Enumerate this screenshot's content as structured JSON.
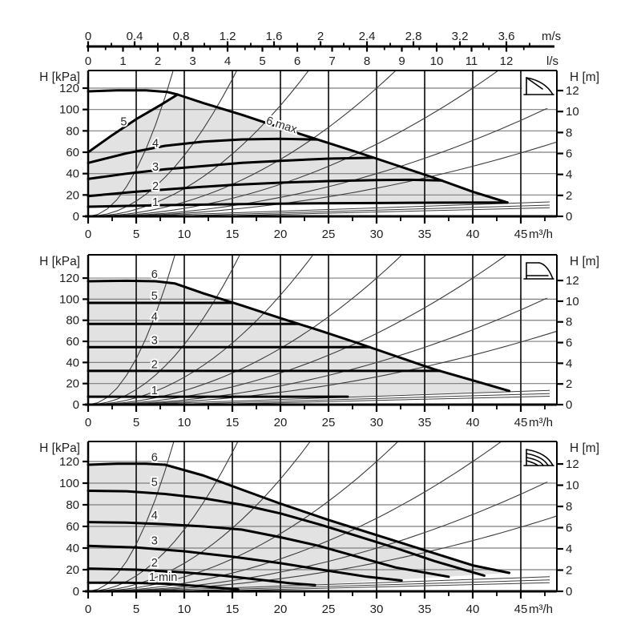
{
  "figure": {
    "colors": {
      "curve": "#000000",
      "grid_vertical": "#161616",
      "grid_horizontal": "#7e7e7e",
      "shade": "#e2e2e2",
      "thin_curve": "#3d3d3d",
      "text": "#1f1f1f",
      "background": "#ffffff"
    },
    "top_scales": {
      "ms": {
        "unit": "m/s",
        "major_step": 0.4,
        "minor_step": 0.2,
        "minor_max": 3.8,
        "majors": [
          "0",
          "0.4",
          "0.8",
          "1.2",
          "1.6",
          "2",
          "2.4",
          "2.8",
          "3.2",
          "3.6"
        ]
      },
      "ls": {
        "unit": "l/s",
        "major_step": 1,
        "minor_step": 0.5,
        "minor_max": 12.5,
        "majors": [
          "0",
          "1",
          "2",
          "3",
          "4",
          "5",
          "6",
          "7",
          "8",
          "9",
          "10",
          "11",
          "12"
        ]
      }
    },
    "system_curves_q_at_120kpa": [
      8.3,
      14.5,
      21.5,
      30,
      40,
      52,
      64
    ],
    "thin_bottom_lines": [
      [
        [
          7,
          0.8
        ],
        [
          48,
          13.5
        ]
      ],
      [
        [
          11,
          0.8
        ],
        [
          48,
          10.5
        ]
      ],
      [
        [
          15.5,
          0.8
        ],
        [
          48,
          8
        ]
      ]
    ]
  },
  "chart_data": [
    {
      "type": "line",
      "icon": "proportional-pressure-icon",
      "xlabel": "m³/h",
      "ylabel_left": "H [kPa]",
      "ylabel_right": "H [m]",
      "x_ticks": [
        0,
        5,
        10,
        15,
        20,
        25,
        30,
        35,
        40,
        45
      ],
      "y_ticks_left_kpa": [
        0,
        20,
        40,
        60,
        80,
        100,
        120
      ],
      "y_ticks_right_m": [
        0,
        2,
        4,
        6,
        8,
        10,
        12
      ],
      "xlim": [
        0,
        48.75
      ],
      "series": [
        {
          "name": "6 max",
          "points": [
            [
              0,
              117
            ],
            [
              3,
              118
            ],
            [
              6,
              118
            ],
            [
              8.2,
              116.5
            ],
            [
              9.3,
              114
            ],
            [
              12,
              106
            ],
            [
              16,
              95
            ],
            [
              20,
              83
            ],
            [
              24,
              71.5
            ],
            [
              28,
              60
            ],
            [
              32,
              48
            ],
            [
              36,
              36
            ],
            [
              40,
              23
            ],
            [
              43.6,
              13
            ]
          ]
        },
        {
          "name": "5",
          "points": [
            [
              0,
              60
            ],
            [
              2.5,
              76
            ],
            [
              5,
              91
            ],
            [
              7.5,
              104
            ],
            [
              9.3,
              114
            ]
          ]
        },
        {
          "name": "4",
          "points": [
            [
              0,
              50
            ],
            [
              4,
              59
            ],
            [
              8,
              66
            ],
            [
              12,
              70
            ],
            [
              16,
              72
            ],
            [
              20,
              72.5
            ],
            [
              23.8,
              71.9
            ]
          ]
        },
        {
          "name": "3",
          "points": [
            [
              0,
              35
            ],
            [
              4,
              40
            ],
            [
              8,
              44
            ],
            [
              12,
              47
            ],
            [
              16,
              50
            ],
            [
              20,
              52
            ],
            [
              25,
              54
            ],
            [
              29.7,
              54.8
            ]
          ]
        },
        {
          "name": "2",
          "points": [
            [
              0,
              19
            ],
            [
              5,
              23
            ],
            [
              10,
              26.5
            ],
            [
              15,
              29.5
            ],
            [
              20,
              31.5
            ],
            [
              25,
              33
            ],
            [
              30,
              34
            ],
            [
              33.5,
              34.2
            ],
            [
              36.8,
              33.6
            ]
          ]
        },
        {
          "name": "1",
          "points": [
            [
              0,
              9
            ],
            [
              8,
              10.5
            ],
            [
              16,
              11.5
            ],
            [
              24,
              12.2
            ],
            [
              32,
              12.6
            ],
            [
              38,
              12.8
            ],
            [
              43.6,
              13
            ]
          ]
        }
      ],
      "curve_labels": [
        {
          "text": "5",
          "q": 3.7,
          "kpa": 89
        },
        {
          "text": "4",
          "q": 7,
          "kpa": 68.5
        },
        {
          "text": "3",
          "q": 7,
          "kpa": 46.5
        },
        {
          "text": "2",
          "q": 7,
          "kpa": 28.5
        },
        {
          "text": "1",
          "q": 7,
          "kpa": 13.5
        },
        {
          "text": "6 max",
          "q": 20,
          "kpa": 86,
          "rotate": 18
        }
      ],
      "shade": [
        [
          0,
          60
        ],
        [
          2.5,
          76
        ],
        [
          5,
          91
        ],
        [
          7.5,
          104
        ],
        [
          9.3,
          114
        ],
        [
          12,
          106
        ],
        [
          16,
          95
        ],
        [
          20,
          83
        ],
        [
          24,
          71.5
        ],
        [
          28,
          60
        ],
        [
          32,
          48
        ],
        [
          36,
          36
        ],
        [
          40,
          23
        ],
        [
          43.6,
          13
        ],
        [
          38,
          12.8
        ],
        [
          32,
          12.6
        ],
        [
          24,
          12.2
        ],
        [
          16,
          11.5
        ],
        [
          8,
          10.5
        ],
        [
          0,
          9
        ]
      ]
    },
    {
      "type": "line",
      "icon": "constant-pressure-icon",
      "xlabel": "m³/h",
      "ylabel_left": "H [kPa]",
      "ylabel_right": "H [m]",
      "x_ticks": [
        0,
        5,
        10,
        15,
        20,
        25,
        30,
        35,
        40,
        45
      ],
      "y_ticks_left_kpa": [
        0,
        20,
        40,
        60,
        80,
        100,
        120
      ],
      "y_ticks_right_m": [
        0,
        2,
        4,
        6,
        8,
        10,
        12
      ],
      "xlim": [
        0,
        48.75
      ],
      "series": [
        {
          "name": "6",
          "points": [
            [
              0,
              117
            ],
            [
              4,
              117.5
            ],
            [
              7,
              117
            ],
            [
              9,
              115
            ],
            [
              12,
              105.5
            ],
            [
              16,
              94
            ],
            [
              20,
              82
            ],
            [
              24,
              70.5
            ],
            [
              28,
              58.5
            ],
            [
              32,
              46
            ],
            [
              36,
              33.5
            ],
            [
              40,
              23
            ],
            [
              43.8,
              13
            ]
          ]
        },
        {
          "name": "5",
          "points": [
            [
              0,
              96.5
            ],
            [
              15.1,
              96.5
            ]
          ]
        },
        {
          "name": "4",
          "points": [
            [
              0,
              76.5
            ],
            [
              21.9,
              76.5
            ]
          ]
        },
        {
          "name": "3",
          "points": [
            [
              0,
              54.5
            ],
            [
              29.3,
              54.5
            ]
          ]
        },
        {
          "name": "2",
          "points": [
            [
              0,
              32
            ],
            [
              36.6,
              32
            ]
          ]
        },
        {
          "name": "1",
          "points": [
            [
              0,
              7.5
            ],
            [
              27,
              7.5
            ]
          ]
        }
      ],
      "curve_labels": [
        {
          "text": "6",
          "q": 6.9,
          "kpa": 124
        },
        {
          "text": "5",
          "q": 6.9,
          "kpa": 103.5
        },
        {
          "text": "4",
          "q": 6.9,
          "kpa": 83.5
        },
        {
          "text": "3",
          "q": 6.9,
          "kpa": 61
        },
        {
          "text": "2",
          "q": 6.9,
          "kpa": 38.5
        },
        {
          "text": "1",
          "q": 6.9,
          "kpa": 13.5
        }
      ],
      "shade": [
        [
          0,
          117
        ],
        [
          7,
          117
        ],
        [
          9,
          115
        ],
        [
          12,
          105.5
        ],
        [
          16,
          94
        ],
        [
          20,
          82
        ],
        [
          24,
          70.5
        ],
        [
          28,
          58.5
        ],
        [
          32,
          46
        ],
        [
          36,
          33.5
        ],
        [
          40,
          23
        ],
        [
          43.8,
          13
        ],
        [
          27,
          7.5
        ],
        [
          0,
          7.5
        ]
      ]
    },
    {
      "type": "line",
      "icon": "constant-curves-icon",
      "xlabel": "m³/h",
      "ylabel_left": "H [kPa]",
      "ylabel_right": "H [m]",
      "x_ticks": [
        0,
        5,
        10,
        15,
        20,
        25,
        30,
        35,
        40,
        45
      ],
      "y_ticks_left_kpa": [
        0,
        20,
        40,
        60,
        80,
        100,
        120
      ],
      "y_ticks_right_m": [
        0,
        2,
        4,
        6,
        8,
        10,
        12
      ],
      "xlim": [
        0,
        48.75
      ],
      "series": [
        {
          "name": "6",
          "points": [
            [
              0,
              117
            ],
            [
              3,
              118
            ],
            [
              6,
              118
            ],
            [
              8,
              117
            ],
            [
              12,
              107
            ],
            [
              16,
              94
            ],
            [
              20,
              81
            ],
            [
              25,
              66
            ],
            [
              30,
              52
            ],
            [
              35,
              38
            ],
            [
              40,
              24
            ],
            [
              43.8,
              17
            ]
          ]
        },
        {
          "name": "5",
          "points": [
            [
              0,
              93
            ],
            [
              4,
              92.5
            ],
            [
              8,
              90
            ],
            [
              12,
              86
            ],
            [
              16,
              80
            ],
            [
              20,
              72
            ],
            [
              24,
              62
            ],
            [
              28,
              51
            ],
            [
              32,
              40
            ],
            [
              36,
              28
            ],
            [
              41.2,
              14.5
            ]
          ]
        },
        {
          "name": "4",
          "points": [
            [
              0,
              64
            ],
            [
              4,
              63.5
            ],
            [
              8,
              62
            ],
            [
              12,
              60
            ],
            [
              16,
              57
            ],
            [
              20,
              50
            ],
            [
              24,
              42
            ],
            [
              28,
              32
            ],
            [
              32,
              22
            ],
            [
              37.5,
              13.5
            ]
          ]
        },
        {
          "name": "3",
          "points": [
            [
              0,
              42
            ],
            [
              5,
              40.5
            ],
            [
              10,
              37
            ],
            [
              15,
              32
            ],
            [
              20,
              26
            ],
            [
              25,
              19
            ],
            [
              29,
              13.5
            ],
            [
              32.6,
              10
            ]
          ]
        },
        {
          "name": "2",
          "points": [
            [
              0,
              21
            ],
            [
              5,
              20
            ],
            [
              10,
              17.5
            ],
            [
              14,
              14.5
            ],
            [
              18,
              10.5
            ],
            [
              21,
              7.5
            ],
            [
              23.6,
              5.8
            ]
          ]
        },
        {
          "name": "1 min",
          "points": [
            [
              0,
              8
            ],
            [
              4,
              8
            ],
            [
              8,
              7
            ],
            [
              12,
              4.5
            ],
            [
              15.6,
              1.8
            ]
          ]
        }
      ],
      "curve_labels": [
        {
          "text": "6",
          "q": 6.9,
          "kpa": 124
        },
        {
          "text": "5",
          "q": 6.9,
          "kpa": 101
        },
        {
          "text": "4",
          "q": 6.9,
          "kpa": 70.5
        },
        {
          "text": "3",
          "q": 6.9,
          "kpa": 47
        },
        {
          "text": "2",
          "q": 6.9,
          "kpa": 26.5
        },
        {
          "text": "1 min",
          "q": 7.8,
          "kpa": 13.5
        }
      ],
      "shade": [
        [
          0,
          117
        ],
        [
          3,
          118
        ],
        [
          6,
          118
        ],
        [
          8,
          117
        ],
        [
          12,
          107
        ],
        [
          16,
          94
        ],
        [
          20,
          81
        ],
        [
          25,
          66
        ],
        [
          30,
          52
        ],
        [
          35,
          38
        ],
        [
          40,
          24
        ],
        [
          43.8,
          17
        ],
        [
          15.6,
          1.8
        ],
        [
          12,
          4.5
        ],
        [
          8,
          7
        ],
        [
          4,
          8
        ],
        [
          0,
          8
        ]
      ]
    }
  ]
}
